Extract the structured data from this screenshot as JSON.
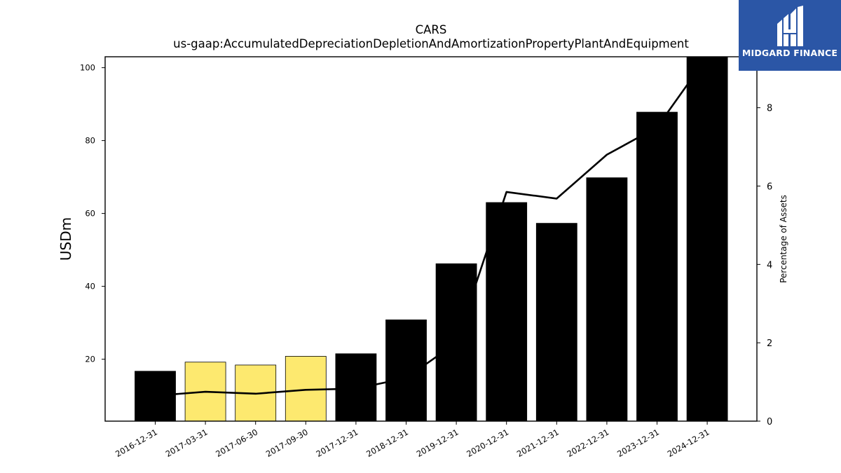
{
  "chart_data": {
    "type": "bar",
    "title": "CARS",
    "subtitle": "us-gaap:AccumulatedDepreciationDepletionAndAmortizationPropertyPlantAndEquipment",
    "ylabel": "USDm",
    "y2label": "Percentage of Assets",
    "categories": [
      "2016-12-31",
      "2017-03-31",
      "2017-06-30",
      "2017-09-30",
      "2017-12-31",
      "2018-12-31",
      "2019-12-31",
      "2020-12-31",
      "2021-12-31",
      "2022-12-31",
      "2023-12-31",
      "2024-12-31"
    ],
    "series": [
      {
        "type": "bar",
        "values": [
          16.7,
          19.2,
          18.4,
          20.8,
          21.5,
          30.8,
          46.2,
          63.0,
          57.3,
          69.8,
          87.8,
          103.0
        ],
        "colors": [
          "#000000",
          "#fde96f",
          "#fde96f",
          "#fde96f",
          "#000000",
          "#000000",
          "#000000",
          "#000000",
          "#000000",
          "#000000",
          "#000000",
          "#000000"
        ]
      },
      {
        "type": "line",
        "axis": "right",
        "values": [
          0.65,
          0.75,
          0.7,
          0.8,
          0.83,
          1.1,
          2.0,
          5.85,
          5.68,
          6.8,
          7.5,
          9.3
        ],
        "color": "#000000"
      }
    ],
    "ylim": [
      3,
      103
    ],
    "yticks": [
      20,
      40,
      60,
      80,
      100
    ],
    "y2lim": [
      0,
      9.3
    ],
    "y2ticks": [
      0,
      2,
      4,
      6,
      8
    ]
  },
  "logo": {
    "text": "MIDGARD FINANCE",
    "background": "#2b56a6"
  }
}
